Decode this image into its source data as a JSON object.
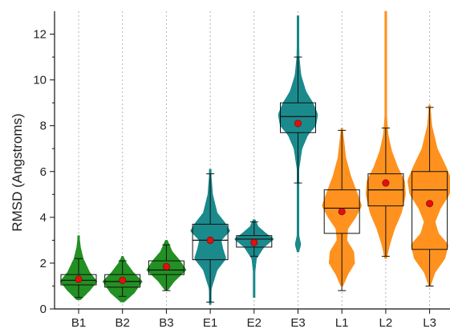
{
  "chart_data": {
    "type": "violin-box",
    "title": "",
    "xlabel": "",
    "ylabel": "RMSD (Angstroms)",
    "ylim": [
      0,
      13
    ],
    "yticks": [
      0,
      2,
      4,
      6,
      8,
      10,
      12
    ],
    "grid": "vertical dotted lines at each category",
    "categories": [
      "B1",
      "B2",
      "B3",
      "E1",
      "E2",
      "E3",
      "L1",
      "L2",
      "L3"
    ],
    "colors": {
      "B": "#178a17",
      "E": "#0f8486",
      "L": "#ff8c12",
      "mean": "#e01010"
    },
    "series": [
      {
        "category": "B1",
        "group": "B",
        "whisker_low": 0.5,
        "q1": 1.05,
        "median": 1.25,
        "q3": 1.5,
        "whisker_high": 2.2,
        "mean": 1.3,
        "range": [
          0.4,
          3.2
        ],
        "profile": [
          [
            0.4,
            0.1
          ],
          [
            0.8,
            0.6
          ],
          [
            1.2,
            1.0
          ],
          [
            1.6,
            0.6
          ],
          [
            2.2,
            0.25
          ],
          [
            2.7,
            0.1
          ],
          [
            3.2,
            0.03
          ]
        ],
        "half_width": 0.42
      },
      {
        "category": "B2",
        "group": "B",
        "whisker_low": 0.55,
        "q1": 0.95,
        "median": 1.2,
        "q3": 1.5,
        "whisker_high": 2.1,
        "mean": 1.25,
        "range": [
          0.3,
          2.3
        ],
        "profile": [
          [
            0.3,
            0.08
          ],
          [
            0.7,
            0.6
          ],
          [
            1.2,
            1.0
          ],
          [
            1.6,
            0.55
          ],
          [
            2.0,
            0.2
          ],
          [
            2.3,
            0.03
          ]
        ],
        "half_width": 0.45
      },
      {
        "category": "B3",
        "group": "B",
        "whisker_low": 0.8,
        "q1": 1.5,
        "median": 1.7,
        "q3": 2.1,
        "whisker_high": 2.8,
        "mean": 1.85,
        "range": [
          0.8,
          3.0
        ],
        "profile": [
          [
            0.8,
            0.05
          ],
          [
            1.2,
            0.4
          ],
          [
            1.7,
            1.0
          ],
          [
            2.1,
            0.7
          ],
          [
            2.5,
            0.3
          ],
          [
            3.0,
            0.05
          ]
        ],
        "half_width": 0.45
      },
      {
        "category": "E1",
        "group": "E",
        "whisker_low": 0.3,
        "q1": 2.15,
        "median": 3.0,
        "q3": 3.7,
        "whisker_high": 5.9,
        "mean": 3.0,
        "range": [
          0.2,
          6.1
        ],
        "profile": [
          [
            0.2,
            0.02
          ],
          [
            0.9,
            0.06
          ],
          [
            1.7,
            0.35
          ],
          [
            2.2,
            0.8
          ],
          [
            2.6,
            0.65
          ],
          [
            3.0,
            0.55
          ],
          [
            3.4,
            1.0
          ],
          [
            3.7,
            0.8
          ],
          [
            4.2,
            0.35
          ],
          [
            5.0,
            0.12
          ],
          [
            6.1,
            0.02
          ]
        ],
        "half_width": 0.45
      },
      {
        "category": "E2",
        "group": "E",
        "whisker_low": 2.3,
        "q1": 2.7,
        "median": 3.05,
        "q3": 3.2,
        "whisker_high": 3.8,
        "mean": 2.9,
        "range": [
          0.5,
          3.9
        ],
        "profile": [
          [
            0.5,
            0.02
          ],
          [
            1.5,
            0.03
          ],
          [
            2.2,
            0.12
          ],
          [
            2.7,
            0.5
          ],
          [
            3.05,
            1.0
          ],
          [
            3.3,
            0.6
          ],
          [
            3.6,
            0.2
          ],
          [
            3.9,
            0.05
          ]
        ],
        "half_width": 0.45
      },
      {
        "category": "E3",
        "group": "E",
        "whisker_low": 5.5,
        "q1": 7.7,
        "median": 8.4,
        "q3": 9.0,
        "whisker_high": 11.0,
        "mean": 8.1,
        "range": [
          2.5,
          12.8
        ],
        "profile": [
          [
            2.5,
            0.03
          ],
          [
            2.8,
            0.15
          ],
          [
            3.2,
            0.05
          ],
          [
            4.5,
            0.02
          ],
          [
            6.0,
            0.03
          ],
          [
            7.0,
            0.2
          ],
          [
            7.6,
            0.5
          ],
          [
            8.0,
            0.9
          ],
          [
            8.5,
            1.0
          ],
          [
            9.0,
            0.75
          ],
          [
            9.5,
            0.4
          ],
          [
            10.2,
            0.15
          ],
          [
            11.0,
            0.06
          ],
          [
            12.8,
            0.02
          ]
        ],
        "half_width": 0.45
      },
      {
        "category": "L1",
        "group": "L",
        "whisker_low": 0.8,
        "q1": 3.3,
        "median": 4.4,
        "q3": 5.2,
        "whisker_high": 7.8,
        "mean": 4.25,
        "range": [
          1.0,
          7.9
        ],
        "profile": [
          [
            1.0,
            0.05
          ],
          [
            1.5,
            0.3
          ],
          [
            2.0,
            0.65
          ],
          [
            2.5,
            0.6
          ],
          [
            3.0,
            0.25
          ],
          [
            3.5,
            0.3
          ],
          [
            4.0,
            0.7
          ],
          [
            4.5,
            1.0
          ],
          [
            5.0,
            0.8
          ],
          [
            5.8,
            0.45
          ],
          [
            6.6,
            0.2
          ],
          [
            7.9,
            0.03
          ]
        ],
        "half_width": 0.45
      },
      {
        "category": "L2",
        "group": "L",
        "whisker_low": 2.3,
        "q1": 4.5,
        "median": 5.2,
        "q3": 5.9,
        "whisker_high": 7.9,
        "mean": 5.5,
        "range": [
          2.2,
          13.0
        ],
        "profile": [
          [
            2.2,
            0.04
          ],
          [
            2.8,
            0.2
          ],
          [
            3.5,
            0.45
          ],
          [
            4.2,
            0.8
          ],
          [
            5.0,
            1.0
          ],
          [
            5.6,
            0.95
          ],
          [
            6.2,
            0.6
          ],
          [
            6.9,
            0.3
          ],
          [
            7.6,
            0.12
          ],
          [
            8.5,
            0.04
          ],
          [
            10.0,
            0.02
          ],
          [
            13.0,
            0.01
          ]
        ],
        "half_width": 0.45
      },
      {
        "category": "L3",
        "group": "L",
        "whisker_low": 1.0,
        "q1": 2.6,
        "median": 5.2,
        "q3": 6.0,
        "whisker_high": 8.8,
        "mean": 4.6,
        "range": [
          1.0,
          8.9
        ],
        "profile": [
          [
            1.0,
            0.03
          ],
          [
            1.6,
            0.25
          ],
          [
            2.2,
            0.7
          ],
          [
            2.8,
            0.85
          ],
          [
            3.3,
            0.4
          ],
          [
            3.8,
            0.25
          ],
          [
            4.4,
            0.5
          ],
          [
            5.0,
            0.9
          ],
          [
            5.6,
            1.0
          ],
          [
            6.2,
            0.75
          ],
          [
            7.0,
            0.35
          ],
          [
            8.0,
            0.1
          ],
          [
            8.9,
            0.02
          ]
        ],
        "half_width": 0.5
      }
    ]
  }
}
